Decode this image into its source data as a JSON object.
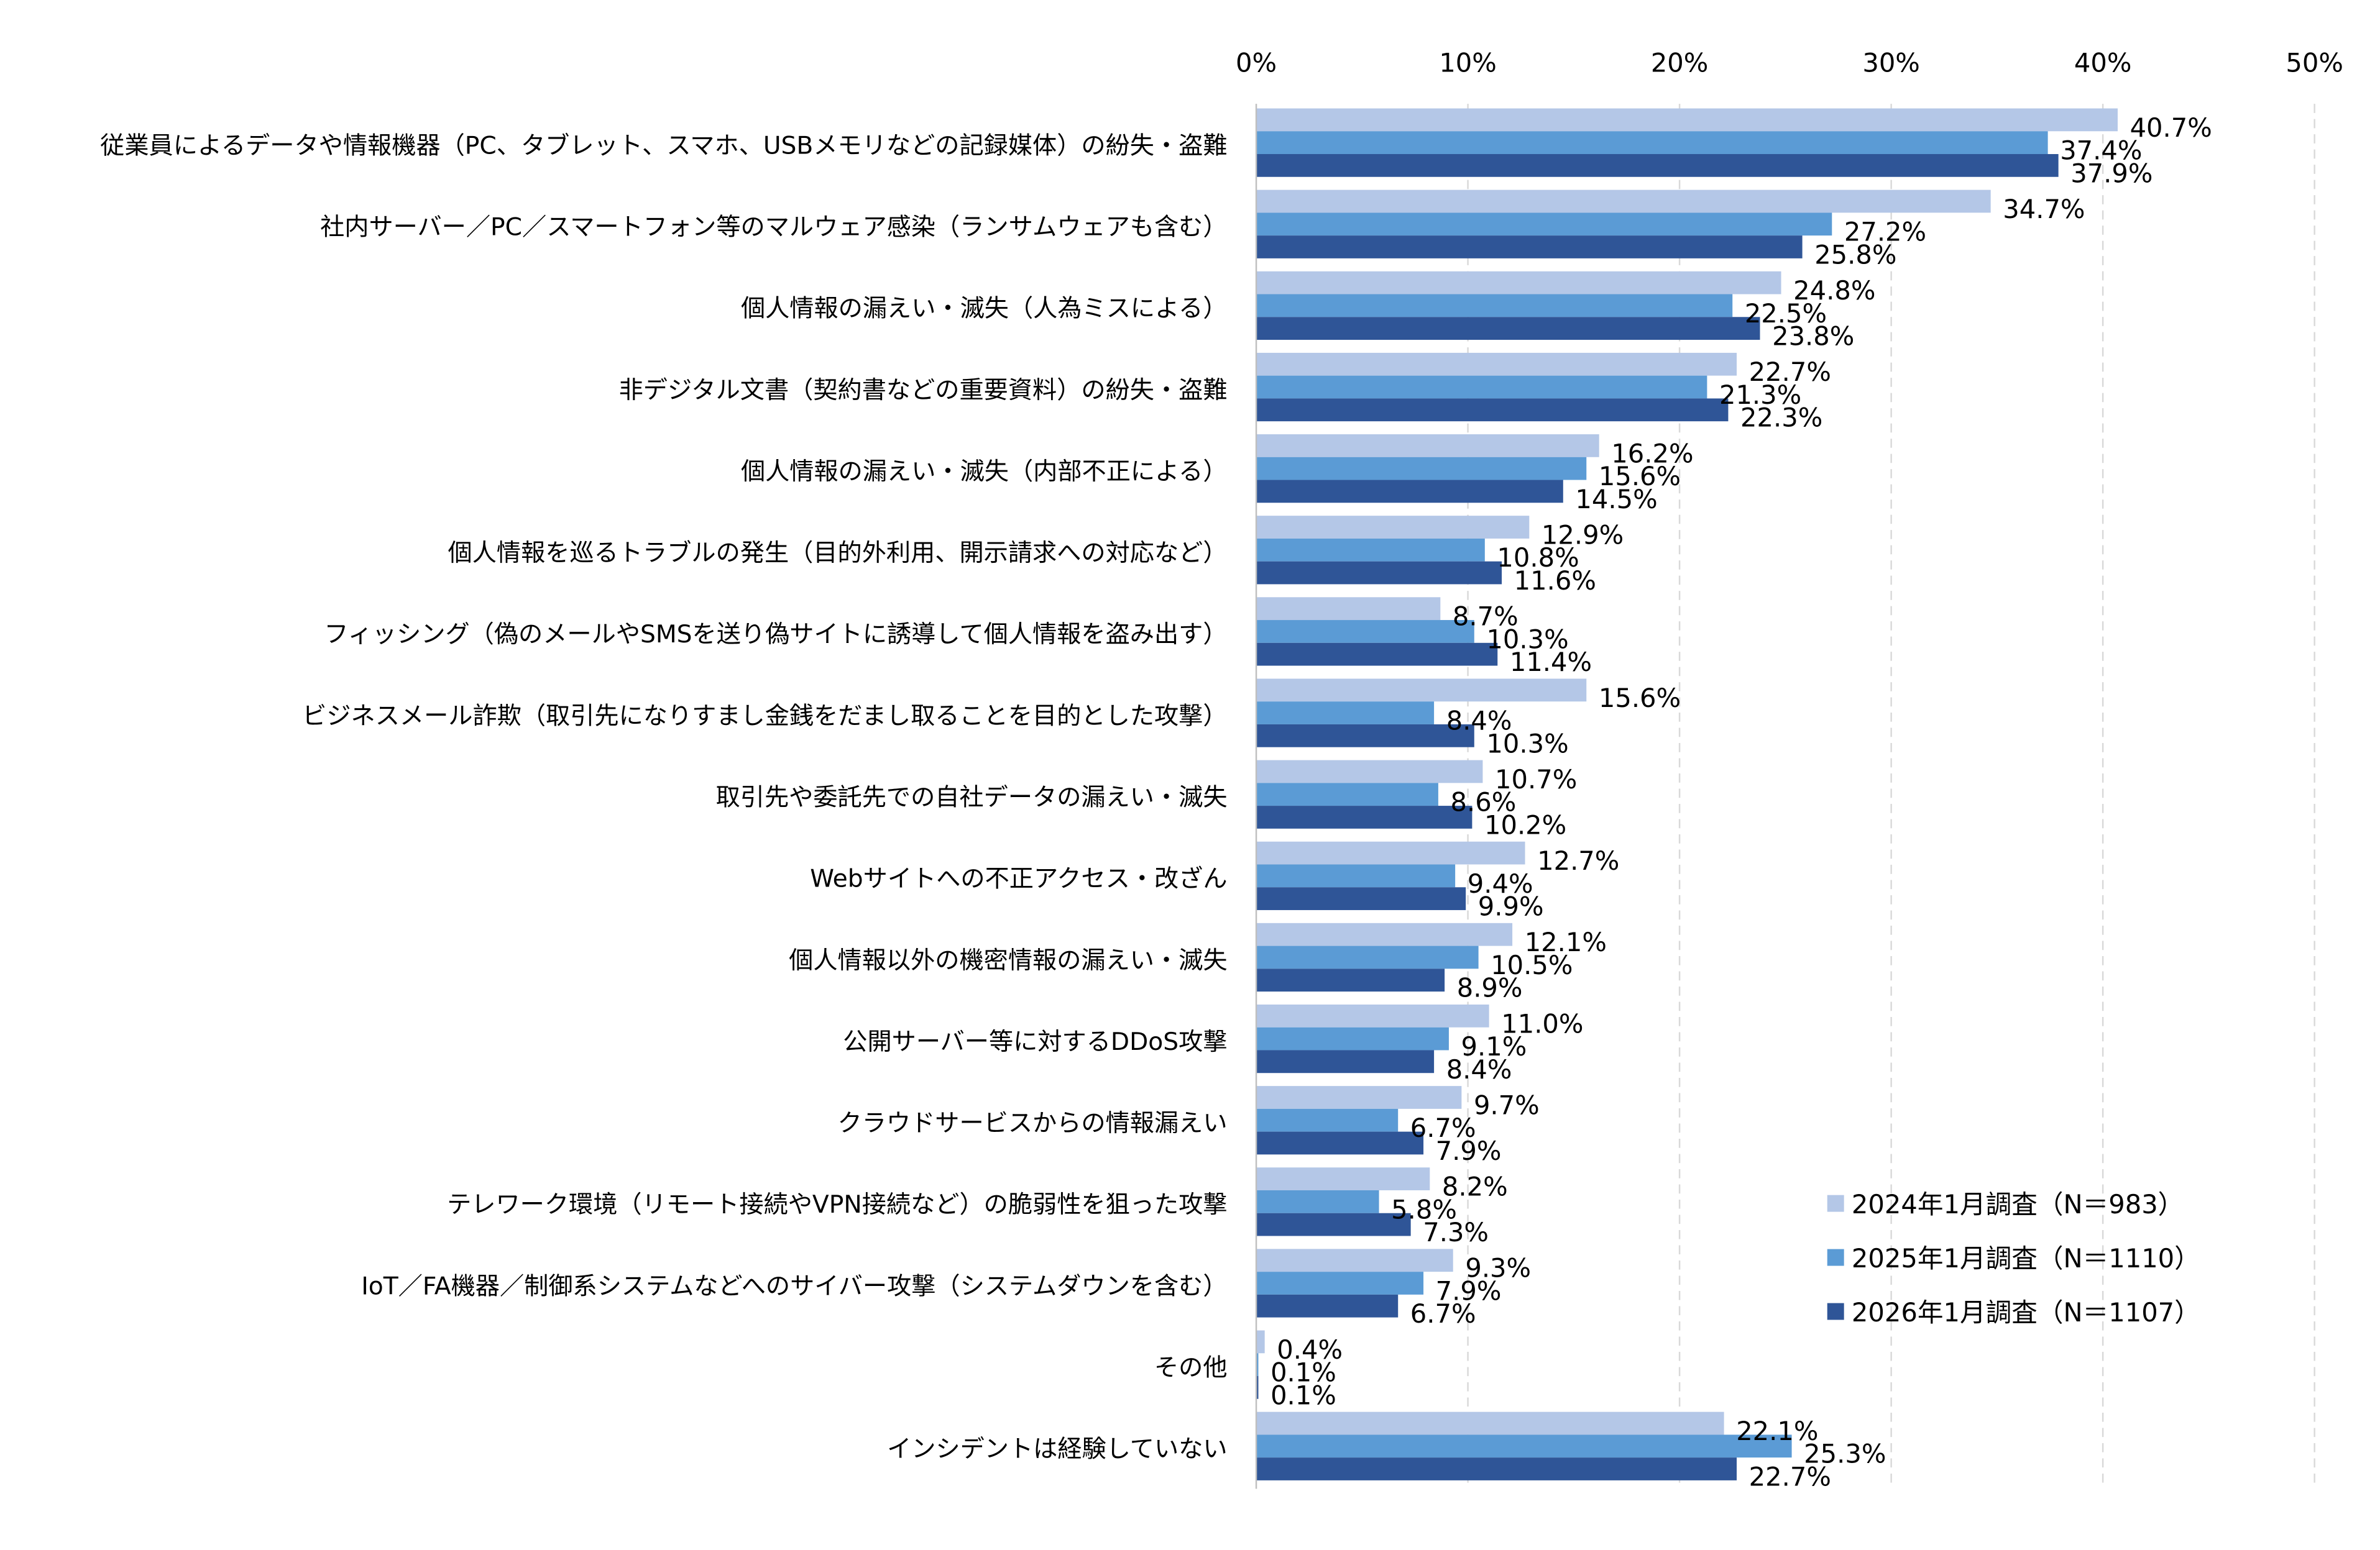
{
  "chart_data": {
    "type": "bar",
    "orientation": "horizontal",
    "title": "",
    "xlabel": "",
    "ylabel": "",
    "xlim": [
      0,
      50
    ],
    "x_ticks": [
      "0%",
      "10%",
      "20%",
      "30%",
      "40%",
      "50%"
    ],
    "grid": "vertical dashed",
    "legend_position": "bottom-right",
    "categories": [
      "従業員によるデータや情報機器（PC、タブレット、スマホ、USBメモリなどの記録媒体）の紛失・盗難",
      "社内サーバー／PC／スマートフォン等のマルウェア感染（ランサムウェアも含む）",
      "個人情報の漏えい・滅失（人為ミスによる）",
      "非デジタル文書（契約書などの重要資料）の紛失・盗難",
      "個人情報の漏えい・滅失（内部不正による）",
      "個人情報を巡るトラブルの発生（目的外利用、開示請求への対応など）",
      "フィッシング（偽のメールやSMSを送り偽サイトに誘導して個人情報を盗み出す）",
      "ビジネスメール詐欺（取引先になりすまし金銭をだまし取ることを目的とした攻撃）",
      "取引先や委託先での自社データの漏えい・滅失",
      "Webサイトへの不正アクセス・改ざん",
      "個人情報以外の機密情報の漏えい・滅失",
      "公開サーバー等に対するDDoS攻撃",
      "クラウドサービスからの情報漏えい",
      "テレワーク環境（リモート接続やVPN接続など）の脆弱性を狙った攻撃",
      "IoT／FA機器／制御系システムなどへのサイバー攻撃（システムダウンを含む）",
      "その他",
      "インシデントは経験していない"
    ],
    "series": [
      {
        "name": "2024年1月調査（N＝983）",
        "color": "#b4c7e7",
        "values": [
          40.7,
          34.7,
          24.8,
          22.7,
          16.2,
          12.9,
          8.7,
          15.6,
          10.7,
          12.7,
          12.1,
          11.0,
          9.7,
          8.2,
          9.3,
          0.4,
          22.1
        ],
        "labels": [
          "40.7%",
          "34.7%",
          "24.8%",
          "22.7%",
          "16.2%",
          "12.9%",
          "8.7%",
          "15.6%",
          "10.7%",
          "12.7%",
          "12.1%",
          "11.0%",
          "9.7%",
          "8.2%",
          "9.3%",
          "0.4%",
          "22.1%"
        ]
      },
      {
        "name": "2025年1月調査（N＝1110）",
        "color": "#5b9bd5",
        "values": [
          37.4,
          27.2,
          22.5,
          21.3,
          15.6,
          10.8,
          10.3,
          8.4,
          8.6,
          9.4,
          10.5,
          9.1,
          6.7,
          5.8,
          7.9,
          0.1,
          25.3
        ],
        "labels": [
          "37.4%",
          "27.2%",
          "22.5%",
          "21.3%",
          "15.6%",
          "10.8%",
          "10.3%",
          "8.4%",
          "8.6%",
          "9.4%",
          "10.5%",
          "9.1%",
          "6.7%",
          "5.8%",
          "7.9%",
          "0.1%",
          "25.3%"
        ]
      },
      {
        "name": "2026年1月調査（N＝1107）",
        "color": "#2f5597",
        "values": [
          37.9,
          25.8,
          23.8,
          22.3,
          14.5,
          11.6,
          11.4,
          10.3,
          10.2,
          9.9,
          8.9,
          8.4,
          7.9,
          7.3,
          6.7,
          0.1,
          22.7
        ],
        "labels": [
          "37.9%",
          "25.8%",
          "23.8%",
          "22.3%",
          "14.5%",
          "11.6%",
          "11.4%",
          "10.3%",
          "10.2%",
          "9.9%",
          "8.9%",
          "8.4%",
          "7.9%",
          "7.3%",
          "6.7%",
          "0.1%",
          "22.7%"
        ]
      }
    ]
  }
}
